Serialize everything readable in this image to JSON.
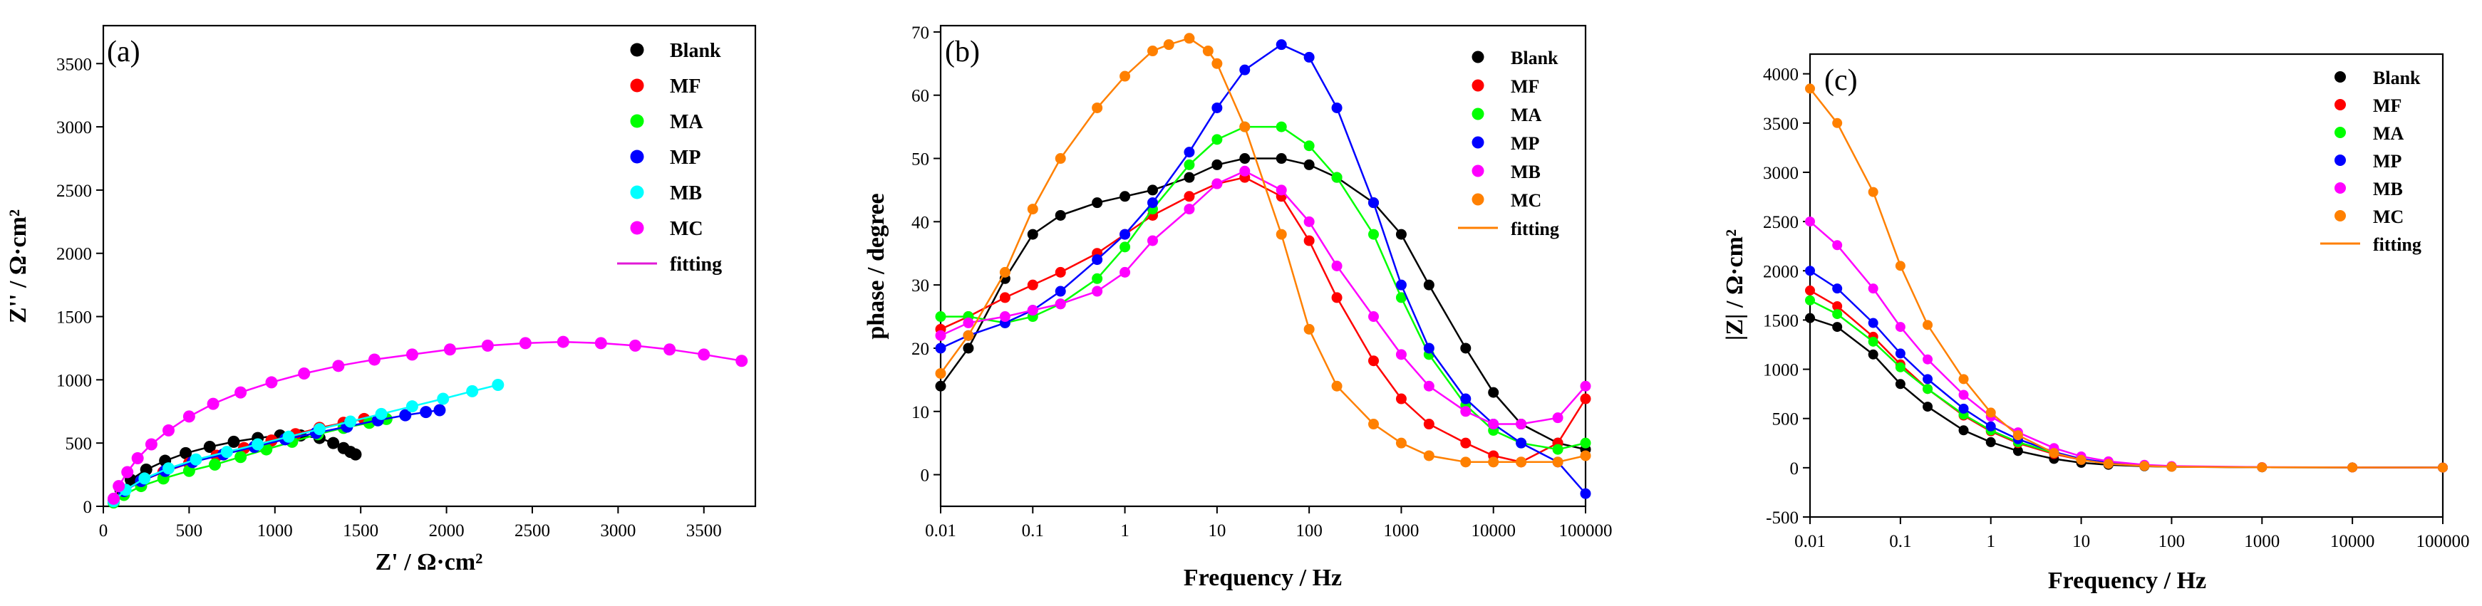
{
  "figure": {
    "panels": [
      "(a)",
      "(b)",
      "(c)"
    ]
  },
  "colors": {
    "Blank": "#000000",
    "MF": "#ff0000",
    "MA": "#00ff00",
    "MP": "#0000ff",
    "MB": "#00ffff",
    "MC": "#ff00ff",
    "MB_b": "#ff00ff",
    "MC_b": "#ff8000",
    "fit_a": "#e01ad6",
    "fit_bc": "#ff7f00"
  },
  "chart_data": [
    {
      "id": "a",
      "type": "scatter",
      "panel_label": "(a)",
      "xlabel": "Z' / Ω·cm²",
      "ylabel": "Z'' / Ω·cm²",
      "xlim": [
        0,
        3800
      ],
      "ylim": [
        0,
        3800
      ],
      "xticks": [
        0,
        500,
        1000,
        1500,
        2000,
        2500,
        3000,
        3500
      ],
      "yticks": [
        0,
        500,
        1000,
        1500,
        2000,
        2500,
        3000,
        3500
      ],
      "legend_position": "top-right",
      "legend": [
        "Blank",
        "MF",
        "MA",
        "MP",
        "MB",
        "MC",
        "fitting"
      ],
      "series": [
        {
          "name": "Blank",
          "color": "#000000",
          "x": [
            60,
            100,
            160,
            250,
            360,
            480,
            620,
            760,
            900,
            1030,
            1150,
            1260,
            1340,
            1400,
            1440,
            1470
          ],
          "y": [
            50,
            130,
            210,
            290,
            360,
            420,
            470,
            510,
            540,
            560,
            560,
            540,
            500,
            460,
            430,
            410
          ]
        },
        {
          "name": "MF",
          "color": "#ff0000",
          "x": [
            60,
            120,
            220,
            350,
            500,
            660,
            820,
            980,
            1120,
            1260,
            1400,
            1520,
            1620
          ],
          "y": [
            40,
            120,
            200,
            270,
            340,
            400,
            460,
            520,
            570,
            620,
            660,
            690,
            700
          ]
        },
        {
          "name": "MA",
          "color": "#00ff00",
          "x": [
            60,
            120,
            220,
            350,
            500,
            650,
            800,
            950,
            1100,
            1250,
            1400,
            1550,
            1650
          ],
          "y": [
            30,
            90,
            160,
            220,
            280,
            330,
            390,
            450,
            510,
            570,
            620,
            660,
            690
          ]
        },
        {
          "name": "MP",
          "color": "#0000ff",
          "x": [
            60,
            120,
            220,
            360,
            520,
            700,
            880,
            1060,
            1240,
            1420,
            1600,
            1760,
            1880,
            1960
          ],
          "y": [
            40,
            120,
            200,
            280,
            350,
            410,
            470,
            530,
            580,
            630,
            680,
            720,
            745,
            760
          ]
        },
        {
          "name": "MB",
          "color": "#00ffff",
          "x": [
            60,
            130,
            240,
            380,
            540,
            720,
            900,
            1080,
            1260,
            1440,
            1620,
            1800,
            1980,
            2150,
            2300
          ],
          "y": [
            40,
            130,
            220,
            300,
            370,
            430,
            490,
            550,
            610,
            670,
            730,
            790,
            850,
            910,
            960
          ]
        },
        {
          "name": "MC",
          "color": "#ff00ff",
          "x": [
            60,
            90,
            140,
            200,
            280,
            380,
            500,
            640,
            800,
            980,
            1170,
            1370,
            1580,
            1800,
            2020,
            2240,
            2460,
            2680,
            2900,
            3100,
            3300,
            3500,
            3720
          ],
          "y": [
            60,
            160,
            270,
            380,
            490,
            600,
            710,
            810,
            900,
            980,
            1050,
            1110,
            1160,
            1200,
            1240,
            1270,
            1290,
            1300,
            1290,
            1270,
            1240,
            1200,
            1150
          ]
        }
      ]
    },
    {
      "id": "b",
      "type": "scatter",
      "panel_label": "(b)",
      "xlabel": "Frequency / Hz",
      "ylabel": "phase / degree",
      "xscale": "log",
      "xlim": [
        0.01,
        100000
      ],
      "ylim": [
        -5,
        71
      ],
      "xticks": [
        "0.01",
        "0.1",
        "1",
        "10",
        "100",
        "1000",
        "10000",
        "100000"
      ],
      "yticks": [
        0,
        10,
        20,
        30,
        40,
        50,
        60,
        70
      ],
      "legend_position": "top-right",
      "legend": [
        "Blank",
        "MF",
        "MA",
        "MP",
        "MB",
        "MC",
        "fitting"
      ],
      "series": [
        {
          "name": "Blank",
          "color": "#000000",
          "x": [
            0.01,
            0.02,
            0.05,
            0.1,
            0.2,
            0.5,
            1,
            2,
            5,
            10,
            20,
            50,
            100,
            200,
            500,
            1000,
            2000,
            5000,
            10000,
            20000,
            50000,
            100000
          ],
          "y": [
            14,
            20,
            31,
            38,
            41,
            43,
            44,
            45,
            47,
            49,
            50,
            50,
            49,
            47,
            43,
            38,
            30,
            20,
            13,
            8,
            5,
            4
          ]
        },
        {
          "name": "MF",
          "color": "#ff0000",
          "x": [
            0.01,
            0.02,
            0.05,
            0.1,
            0.2,
            0.5,
            1,
            2,
            5,
            10,
            20,
            50,
            100,
            200,
            500,
            1000,
            2000,
            5000,
            10000,
            20000,
            50000,
            100000
          ],
          "y": [
            23,
            25,
            28,
            30,
            32,
            35,
            38,
            41,
            44,
            46,
            47,
            44,
            37,
            28,
            18,
            12,
            8,
            5,
            3,
            2,
            5,
            12
          ]
        },
        {
          "name": "MA",
          "color": "#00ff00",
          "x": [
            0.01,
            0.02,
            0.05,
            0.1,
            0.2,
            0.5,
            1,
            2,
            5,
            10,
            20,
            50,
            100,
            200,
            500,
            1000,
            2000,
            5000,
            10000,
            20000,
            50000,
            100000
          ],
          "y": [
            25,
            25,
            24,
            25,
            27,
            31,
            36,
            42,
            49,
            53,
            55,
            55,
            52,
            47,
            38,
            28,
            19,
            11,
            7,
            5,
            4,
            5
          ]
        },
        {
          "name": "MP",
          "color": "#0000ff",
          "x": [
            0.01,
            0.02,
            0.05,
            0.1,
            0.2,
            0.5,
            1,
            2,
            5,
            10,
            20,
            50,
            100,
            200,
            500,
            1000,
            2000,
            5000,
            10000,
            20000,
            50000,
            100000
          ],
          "y": [
            20,
            22,
            24,
            26,
            29,
            34,
            38,
            43,
            51,
            58,
            64,
            68,
            66,
            58,
            43,
            30,
            20,
            12,
            8,
            5,
            2,
            -3
          ]
        },
        {
          "name": "MB",
          "color": "#ff00ff",
          "x": [
            0.01,
            0.02,
            0.05,
            0.1,
            0.2,
            0.5,
            1,
            2,
            5,
            10,
            20,
            50,
            100,
            200,
            500,
            1000,
            2000,
            5000,
            10000,
            20000,
            50000,
            100000
          ],
          "y": [
            22,
            24,
            25,
            26,
            27,
            29,
            32,
            37,
            42,
            46,
            48,
            45,
            40,
            33,
            25,
            19,
            14,
            10,
            8,
            8,
            9,
            14
          ]
        },
        {
          "name": "MC",
          "color": "#ff8000",
          "x": [
            0.01,
            0.02,
            0.05,
            0.1,
            0.2,
            0.5,
            1,
            2,
            3,
            5,
            8,
            10,
            20,
            50,
            100,
            200,
            500,
            1000,
            2000,
            5000,
            10000,
            20000,
            50000,
            100000
          ],
          "y": [
            16,
            22,
            32,
            42,
            50,
            58,
            63,
            67,
            68,
            69,
            67,
            65,
            55,
            38,
            23,
            14,
            8,
            5,
            3,
            2,
            2,
            2,
            2,
            3
          ]
        }
      ]
    },
    {
      "id": "c",
      "type": "scatter",
      "panel_label": "(c)",
      "xlabel": "Frequency / Hz",
      "ylabel": "|Z| / Ω·cm²",
      "xscale": "log",
      "xlim": [
        0.01,
        100000
      ],
      "ylim": [
        -500,
        4200
      ],
      "xticks": [
        "0.01",
        "0.1",
        "1",
        "10",
        "100",
        "1000",
        "10000",
        "100000"
      ],
      "yticks": [
        -500,
        0,
        500,
        1000,
        1500,
        2000,
        2500,
        3000,
        3500,
        4000
      ],
      "legend_position": "top-right",
      "legend": [
        "Blank",
        "MF",
        "MA",
        "MP",
        "MB",
        "MC",
        "fitting"
      ],
      "series": [
        {
          "name": "Blank",
          "color": "#000000",
          "x": [
            0.01,
            0.02,
            0.05,
            0.1,
            0.2,
            0.5,
            1,
            2,
            5,
            10,
            20,
            50,
            100,
            1000,
            10000,
            100000
          ],
          "y": [
            1520,
            1430,
            1150,
            850,
            620,
            380,
            260,
            170,
            90,
            50,
            30,
            15,
            10,
            5,
            3,
            2
          ]
        },
        {
          "name": "MF",
          "color": "#ff0000",
          "x": [
            0.01,
            0.02,
            0.05,
            0.1,
            0.2,
            0.5,
            1,
            2,
            5,
            10,
            20,
            50,
            100,
            1000,
            10000,
            100000
          ],
          "y": [
            1800,
            1640,
            1330,
            1050,
            800,
            530,
            370,
            250,
            140,
            80,
            45,
            20,
            12,
            5,
            3,
            2
          ]
        },
        {
          "name": "MA",
          "color": "#00ff00",
          "x": [
            0.01,
            0.02,
            0.05,
            0.1,
            0.2,
            0.5,
            1,
            2,
            5,
            10,
            20,
            50,
            100,
            1000,
            10000,
            100000
          ],
          "y": [
            1700,
            1560,
            1280,
            1020,
            800,
            540,
            380,
            260,
            150,
            85,
            50,
            22,
            13,
            5,
            3,
            2
          ]
        },
        {
          "name": "MP",
          "color": "#0000ff",
          "x": [
            0.01,
            0.02,
            0.05,
            0.1,
            0.2,
            0.5,
            1,
            2,
            5,
            10,
            20,
            50,
            100,
            1000,
            10000,
            100000
          ],
          "y": [
            2000,
            1820,
            1470,
            1160,
            900,
            600,
            420,
            290,
            160,
            90,
            50,
            22,
            13,
            5,
            3,
            2
          ]
        },
        {
          "name": "MB",
          "color": "#ff00ff",
          "x": [
            0.01,
            0.02,
            0.05,
            0.1,
            0.2,
            0.5,
            1,
            2,
            5,
            10,
            20,
            50,
            100,
            1000,
            10000,
            100000
          ],
          "y": [
            2500,
            2260,
            1820,
            1430,
            1100,
            740,
            520,
            360,
            200,
            115,
            65,
            30,
            17,
            6,
            3,
            2
          ]
        },
        {
          "name": "MC",
          "color": "#ff8000",
          "x": [
            0.01,
            0.02,
            0.05,
            0.1,
            0.2,
            0.5,
            1,
            2,
            5,
            10,
            20,
            50,
            100,
            1000,
            10000,
            100000
          ],
          "y": [
            3850,
            3500,
            2800,
            2050,
            1450,
            900,
            560,
            330,
            150,
            80,
            40,
            18,
            10,
            5,
            3,
            2
          ]
        }
      ]
    }
  ]
}
